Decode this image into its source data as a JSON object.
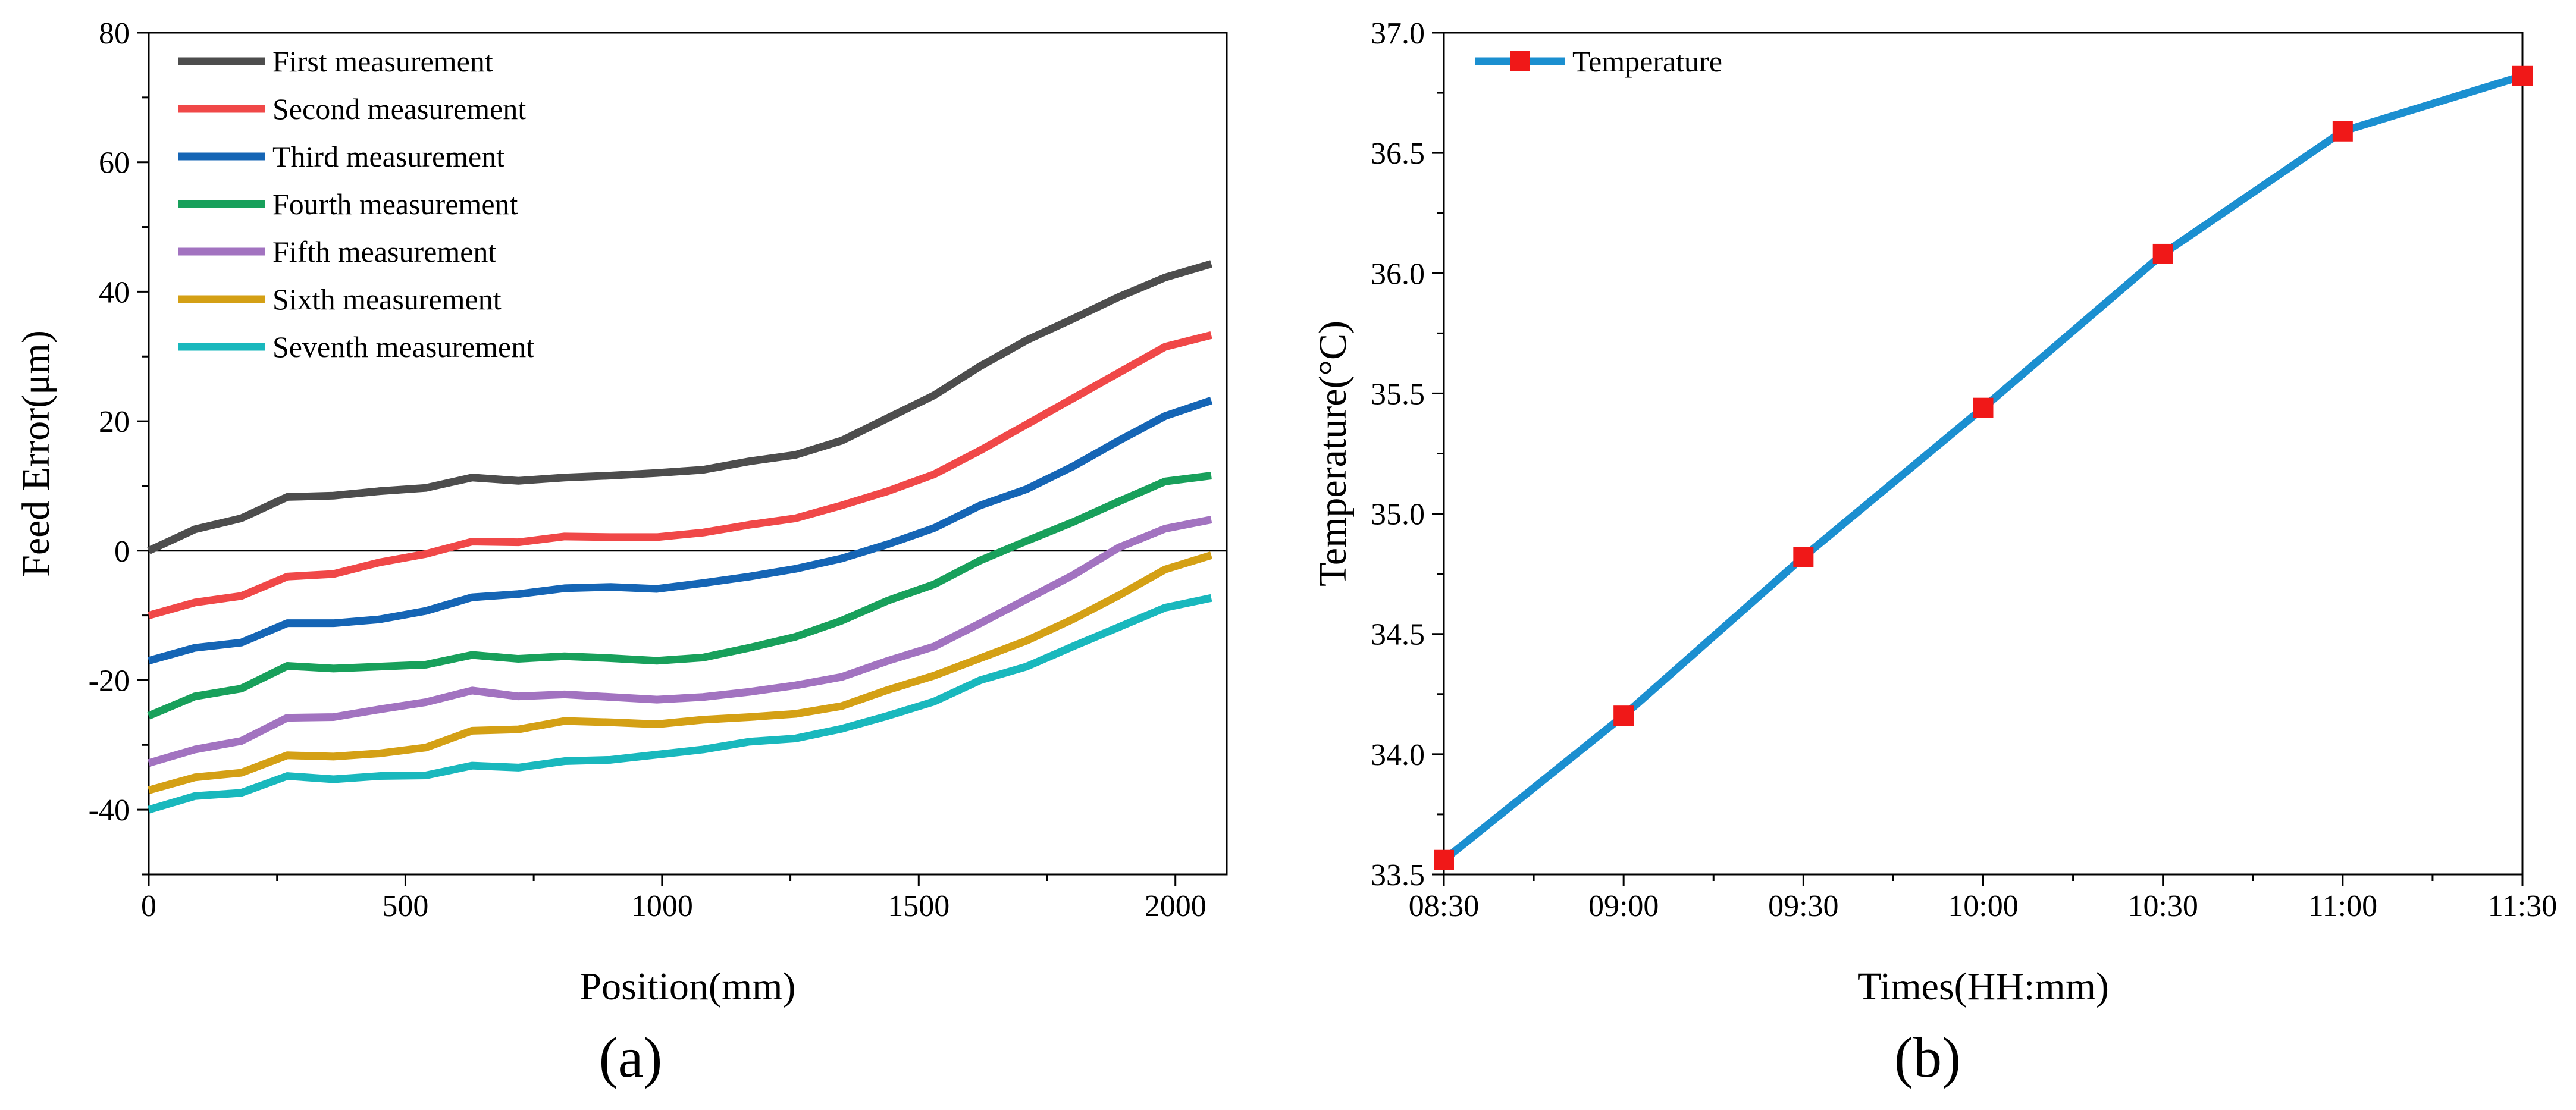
{
  "chart_data": [
    {
      "type": "line",
      "panel_label": "(a)",
      "title": "",
      "xlabel": "Position(mm)",
      "ylabel": "Feed Error(μm)",
      "xlim": [
        0,
        2100
      ],
      "ylim": [
        -50,
        80
      ],
      "xticks": [
        0,
        500,
        1000,
        1500,
        2000
      ],
      "yticks": [
        80,
        60,
        40,
        20,
        0,
        -20,
        -40
      ],
      "zero_line": true,
      "legend_position": "top-left",
      "x": [
        0,
        90,
        180,
        270,
        360,
        450,
        540,
        630,
        720,
        810,
        900,
        990,
        1080,
        1170,
        1260,
        1350,
        1440,
        1530,
        1620,
        1710,
        1800,
        1890,
        1980,
        2070
      ],
      "series": [
        {
          "name": "First measurement",
          "color": "#4d4d4d",
          "values": [
            0,
            3.3,
            5,
            8.3,
            8.5,
            9.2,
            9.7,
            11.3,
            10.8,
            11.3,
            11.6,
            12,
            12.5,
            13.8,
            14.8,
            17,
            20.5,
            24,
            28.5,
            32.5,
            35.8,
            39.2,
            42.2,
            44.3
          ]
        },
        {
          "name": "Second measurement",
          "color": "#f04848",
          "values": [
            -10,
            -8,
            -7,
            -4,
            -3.6,
            -1.8,
            -0.5,
            1.4,
            1.3,
            2.2,
            2.1,
            2.1,
            2.8,
            4,
            5,
            7,
            9.2,
            11.8,
            15.5,
            19.5,
            23.5,
            27.5,
            31.5,
            33.3
          ]
        },
        {
          "name": "Third measurement",
          "color": "#1565b5",
          "values": [
            -17,
            -15,
            -14.2,
            -11.2,
            -11.2,
            -10.6,
            -9.3,
            -7.2,
            -6.7,
            -5.8,
            -5.6,
            -5.9,
            -5,
            -4,
            -2.8,
            -1.2,
            1,
            3.5,
            7,
            9.5,
            13,
            17,
            20.8,
            23.2
          ]
        },
        {
          "name": "Fourth measurement",
          "color": "#18a05b",
          "values": [
            -25.5,
            -22.5,
            -21.3,
            -17.8,
            -18.2,
            -17.9,
            -17.6,
            -16.1,
            -16.7,
            -16.3,
            -16.6,
            -17,
            -16.5,
            -15,
            -13.3,
            -10.8,
            -7.7,
            -5.2,
            -1.5,
            1.5,
            4.4,
            7.6,
            10.7,
            11.6
          ]
        },
        {
          "name": "Fifth measurement",
          "color": "#a273c0",
          "values": [
            -32.8,
            -30.7,
            -29.4,
            -25.8,
            -25.7,
            -24.5,
            -23.4,
            -21.6,
            -22.5,
            -22.2,
            -22.6,
            -23,
            -22.6,
            -21.8,
            -20.8,
            -19.5,
            -17,
            -14.8,
            -11.2,
            -7.5,
            -3.8,
            0.5,
            3.4,
            4.8
          ]
        },
        {
          "name": "Sixth measurement",
          "color": "#d4a015",
          "values": [
            -37,
            -35,
            -34.3,
            -31.6,
            -31.8,
            -31.3,
            -30.4,
            -27.8,
            -27.6,
            -26.3,
            -26.5,
            -26.8,
            -26.1,
            -25.7,
            -25.2,
            -24,
            -21.5,
            -19.3,
            -16.6,
            -13.9,
            -10.6,
            -6.9,
            -2.9,
            -0.7
          ]
        },
        {
          "name": "Seventh measurement",
          "color": "#19b8bd",
          "values": [
            -40,
            -37.9,
            -37.4,
            -34.8,
            -35.3,
            -34.8,
            -34.7,
            -33.2,
            -33.5,
            -32.5,
            -32.3,
            -31.5,
            -30.7,
            -29.5,
            -29,
            -27.5,
            -25.5,
            -23.3,
            -20,
            -17.9,
            -14.8,
            -11.8,
            -8.8,
            -7.3
          ]
        }
      ]
    },
    {
      "type": "line",
      "panel_label": "(b)",
      "title": "",
      "xlabel": "Times(HH:mm)",
      "ylabel": "Temperature(°C)",
      "xlim": [
        0,
        180
      ],
      "ylim": [
        33.5,
        37.0
      ],
      "xticks": [
        0,
        30,
        60,
        90,
        120,
        150,
        180
      ],
      "xtick_labels": [
        "08:30",
        "09:00",
        "09:30",
        "10:00",
        "10:30",
        "11:00",
        "11:30"
      ],
      "yticks": [
        37.0,
        36.5,
        36.0,
        35.5,
        35.0,
        34.5,
        34.0,
        33.5
      ],
      "ytick_labels": [
        "37.0",
        "36.5",
        "36.0",
        "35.5",
        "35.0",
        "34.5",
        "34.0",
        "33.5"
      ],
      "legend_position": "top-left",
      "series": [
        {
          "name": "Temperature",
          "color": "#1b8fd0",
          "marker": "square",
          "marker_color": "#f01818",
          "x": [
            0,
            30,
            60,
            90,
            120,
            150,
            180
          ],
          "values": [
            33.56,
            34.16,
            34.82,
            35.44,
            36.08,
            36.59,
            36.82
          ]
        }
      ]
    }
  ]
}
